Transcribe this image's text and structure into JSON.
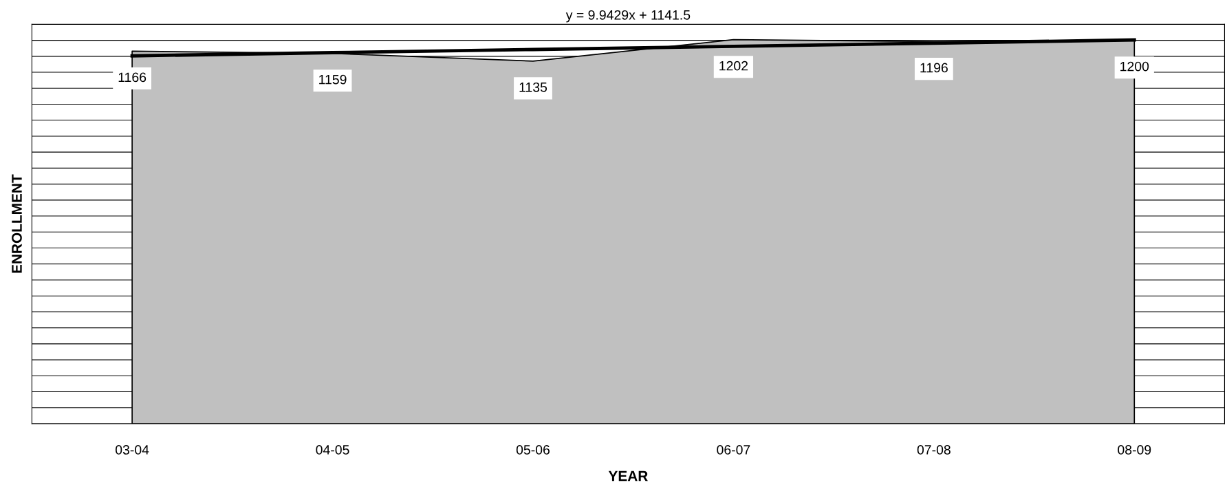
{
  "chart_data": {
    "type": "area",
    "categories": [
      "03-04",
      "04-05",
      "05-06",
      "06-07",
      "07-08",
      "08-09"
    ],
    "series": [
      {
        "color": "#c0c0c0",
        "values": [
          1166,
          1159,
          1135,
          1202,
          1196,
          1200
        ],
        "value_labels": [
          "1166",
          "1159",
          "1135",
          "1202",
          "1196",
          "1200"
        ]
      },
      {
        "type": "line",
        "color": "#000000",
        "values": [
          1151.4,
          1161.4,
          1171.3,
          1181.3,
          1191.2,
          1201.2
        ]
      }
    ],
    "annotations": [
      "y = 9.9429x + 1141.5"
    ],
    "xlabel": "YEAR",
    "ylabel": "ENROLLMENT",
    "ylim": [
      0,
      1250
    ],
    "yticks": [
      {
        "value": 0,
        "label": null
      },
      {
        "value": 50,
        "label": null
      },
      {
        "value": 100,
        "label": null
      },
      {
        "value": 150,
        "label": null
      },
      {
        "value": 200,
        "label": null
      },
      {
        "value": 250,
        "label": null
      },
      {
        "value": 300,
        "label": null
      },
      {
        "value": 350,
        "label": null
      },
      {
        "value": 400,
        "label": null
      },
      {
        "value": 450,
        "label": null
      },
      {
        "value": 500,
        "label": null
      },
      {
        "value": 550,
        "label": null
      },
      {
        "value": 600,
        "label": null
      },
      {
        "value": 650,
        "label": null
      },
      {
        "value": 700,
        "label": null
      },
      {
        "value": 750,
        "label": null
      },
      {
        "value": 800,
        "label": null
      },
      {
        "value": 850,
        "label": null
      },
      {
        "value": 900,
        "label": null
      },
      {
        "value": 950,
        "label": null
      },
      {
        "value": 1000,
        "label": null
      },
      {
        "value": 1050,
        "label": null
      },
      {
        "value": 1100,
        "label": null
      },
      {
        "value": 1150,
        "label": null
      },
      {
        "value": 1200,
        "label": null
      },
      {
        "value": 1250,
        "label": null
      }
    ],
    "grid": "y",
    "tick_labels": "x"
  }
}
